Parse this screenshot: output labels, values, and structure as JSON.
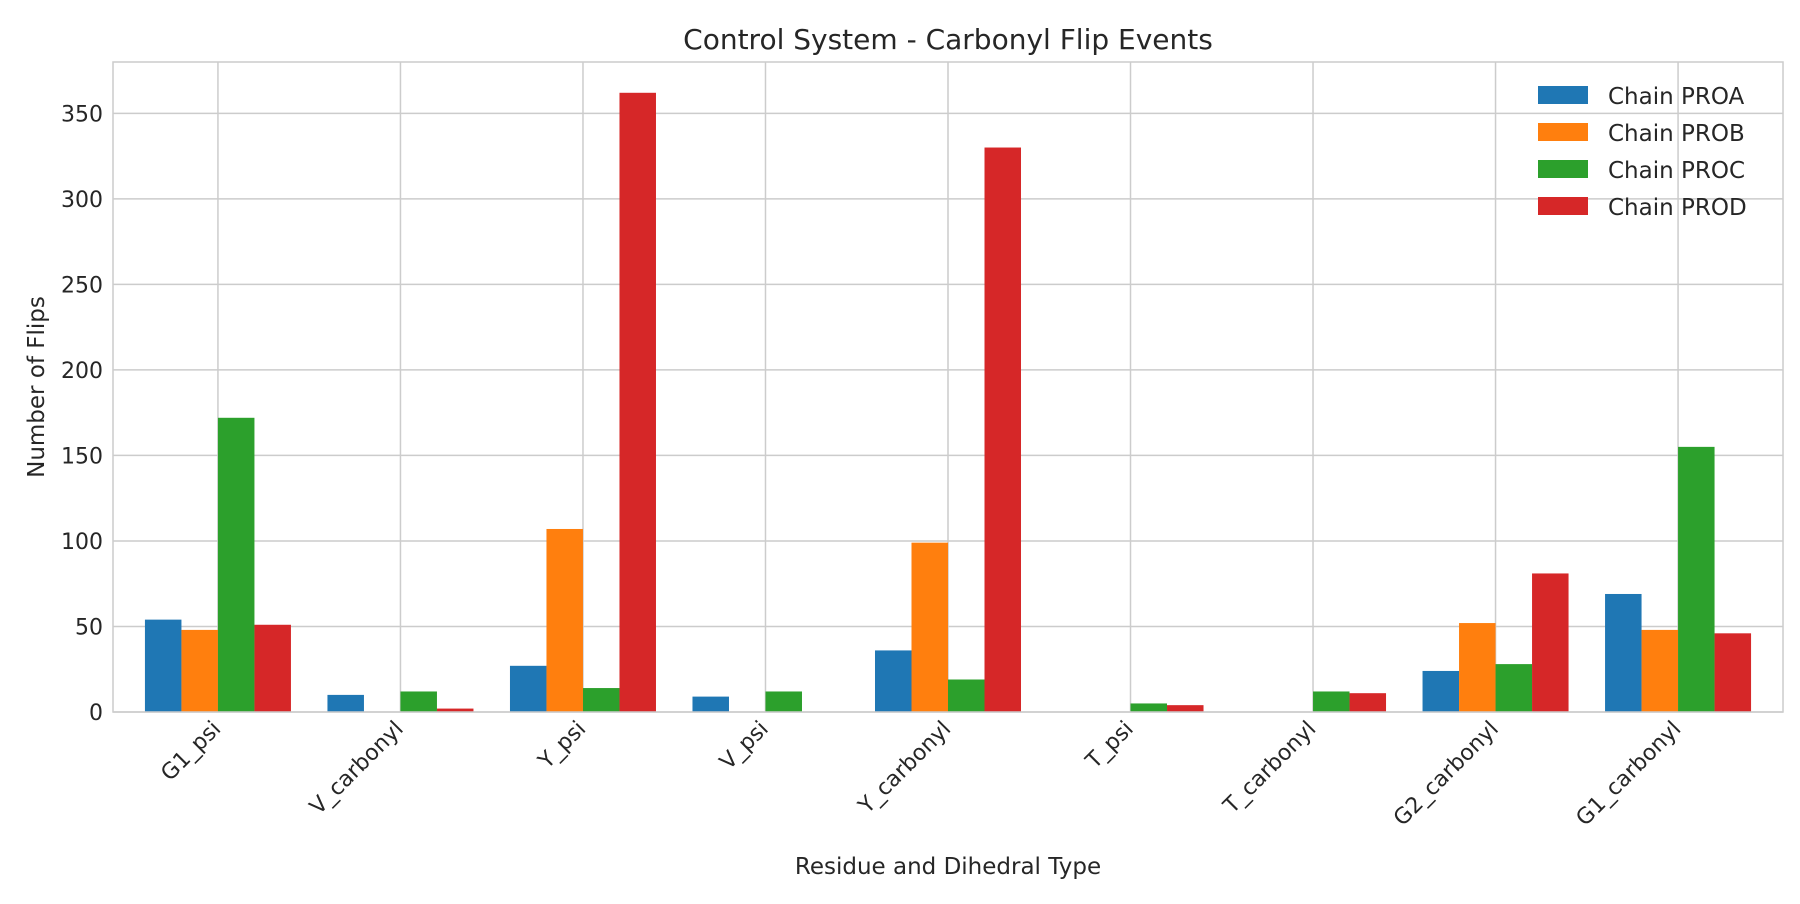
{
  "chart_data": {
    "type": "bar",
    "title": "Control System - Carbonyl Flip Events",
    "xlabel": "Residue and Dihedral Type",
    "ylabel": "Number of Flips",
    "ylim": [
      0,
      380
    ],
    "yticks": [
      0,
      50,
      100,
      150,
      200,
      250,
      300,
      350
    ],
    "grid": true,
    "legend_position": "top-right",
    "categories": [
      "G1_psi",
      "V_carbonyl",
      "Y_psi",
      "V_psi",
      "Y_carbonyl",
      "T_psi",
      "T_carbonyl",
      "G2_carbonyl",
      "G1_carbonyl"
    ],
    "series": [
      {
        "name": "Chain PROA",
        "color": "#1f77b4",
        "values": [
          54,
          10,
          27,
          9,
          36,
          0,
          0,
          24,
          69
        ]
      },
      {
        "name": "Chain PROB",
        "color": "#ff7f0e",
        "values": [
          48,
          0,
          107,
          0,
          99,
          0,
          0,
          52,
          48
        ]
      },
      {
        "name": "Chain PROC",
        "color": "#2ca02c",
        "values": [
          172,
          12,
          14,
          12,
          19,
          5,
          12,
          28,
          155
        ]
      },
      {
        "name": "Chain PROD",
        "color": "#d62728",
        "values": [
          51,
          2,
          362,
          0,
          330,
          4,
          11,
          81,
          46
        ]
      }
    ]
  }
}
